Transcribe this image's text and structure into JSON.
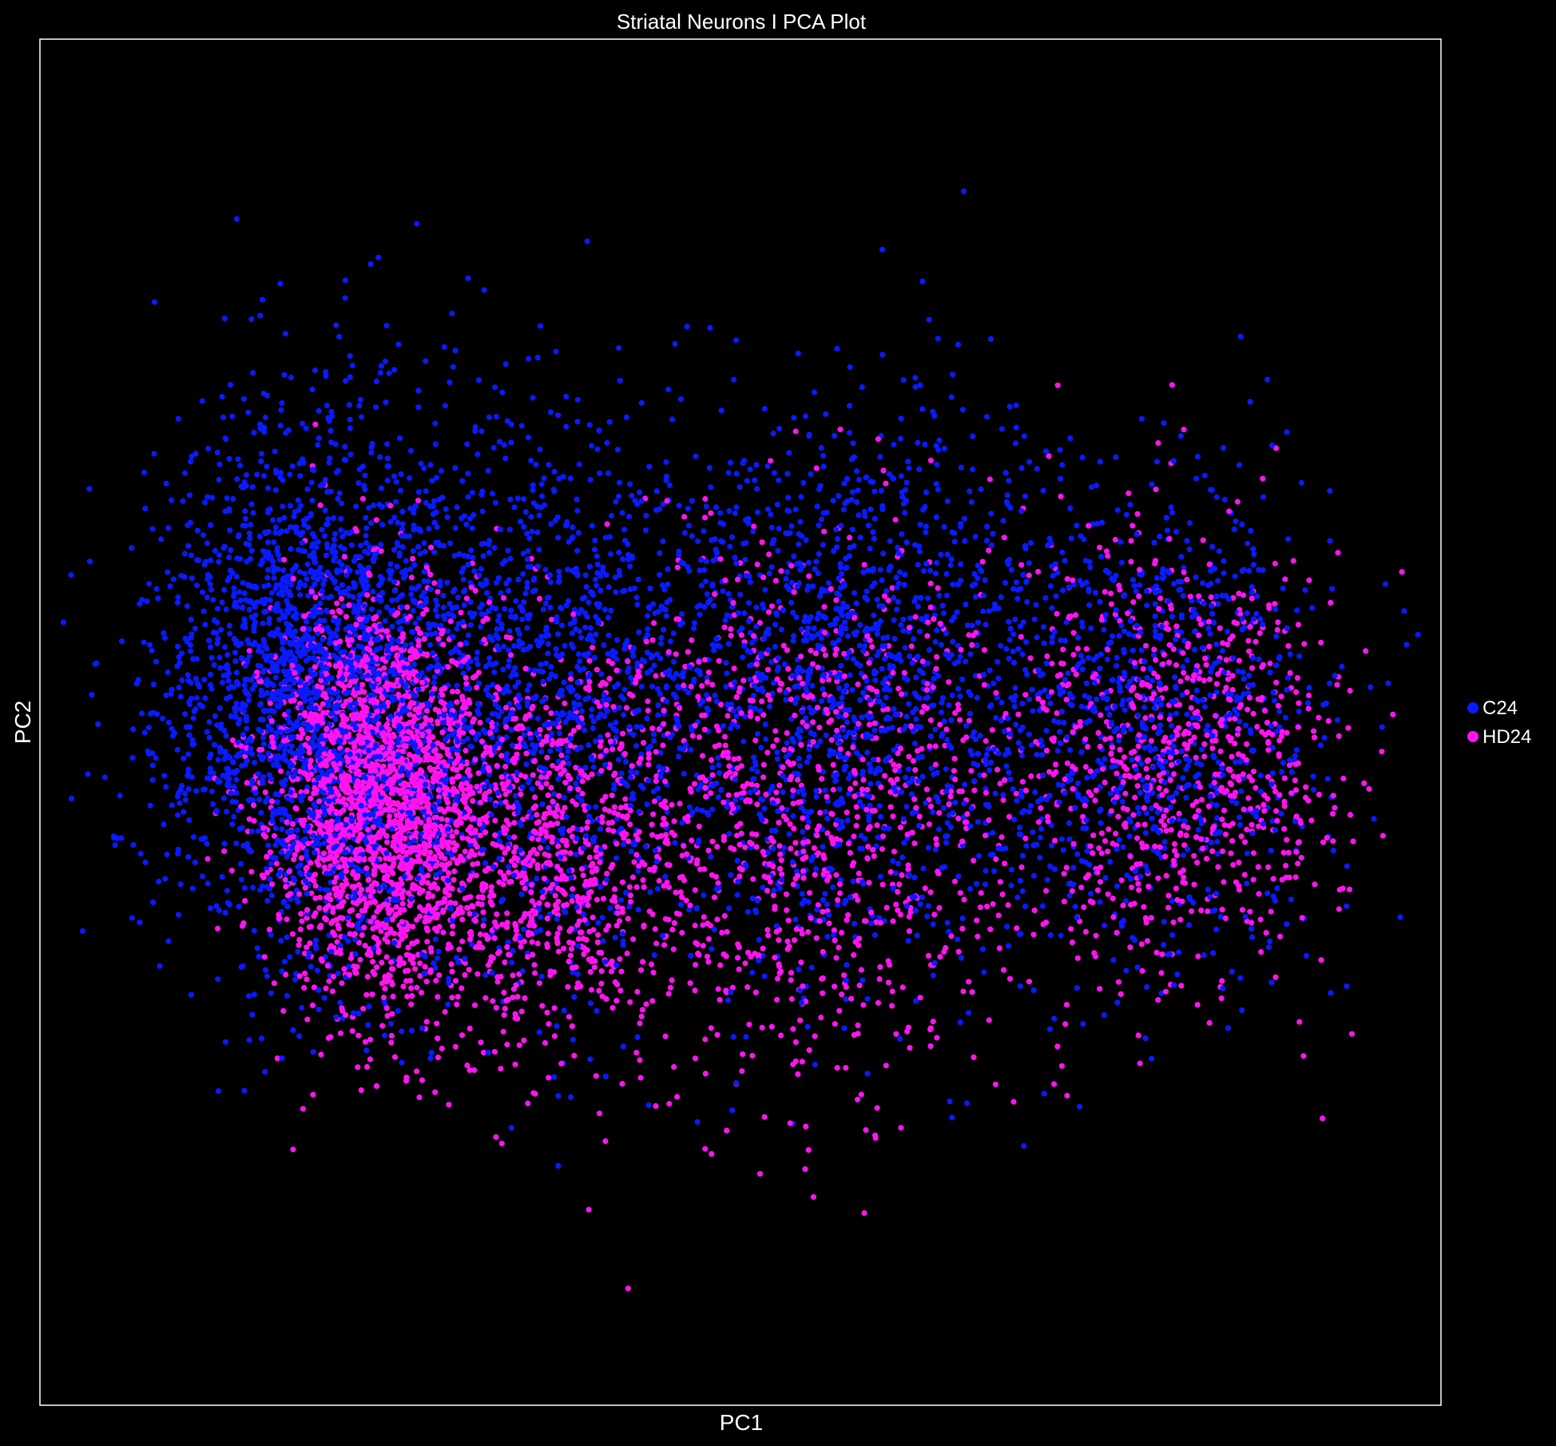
{
  "chart_data": {
    "type": "scatter",
    "title": "Striatal Neurons I PCA Plot",
    "xlabel": "PC1",
    "ylabel": "PC2",
    "xlim": [
      -4.6,
      4.9
    ],
    "ylim": [
      -4.6,
      4.6
    ],
    "grid": false,
    "ticks_shown": false,
    "legend": "right",
    "background": "#000000",
    "frame_color": "#ffffff",
    "series": [
      {
        "name": "C24",
        "color": "#0a1aff",
        "clusters": [
          {
            "center": [
              -2.75,
              0.25
            ],
            "spread": [
              0.85,
              1.45
            ],
            "n": 2300
          },
          {
            "center": [
              -1.2,
              0.2
            ],
            "spread": [
              0.9,
              1.5
            ],
            "n": 1100
          },
          {
            "center": [
              0.9,
              0.25
            ],
            "spread": [
              1.25,
              1.55
            ],
            "n": 1500
          },
          {
            "center": [
              3.0,
              0.05
            ],
            "spread": [
              0.95,
              1.3
            ],
            "n": 850
          }
        ]
      },
      {
        "name": "HD24",
        "color": "#ff14f0",
        "clusters": [
          {
            "center": [
              -2.3,
              -0.5
            ],
            "spread": [
              0.6,
              1.05
            ],
            "n": 2100
          },
          {
            "center": [
              -1.3,
              -0.9
            ],
            "spread": [
              0.85,
              1.1
            ],
            "n": 950
          },
          {
            "center": [
              0.6,
              -0.6
            ],
            "spread": [
              1.3,
              1.5
            ],
            "n": 1000
          },
          {
            "center": [
              3.1,
              -0.2
            ],
            "spread": [
              0.95,
              1.25
            ],
            "n": 800
          }
        ]
      }
    ]
  }
}
